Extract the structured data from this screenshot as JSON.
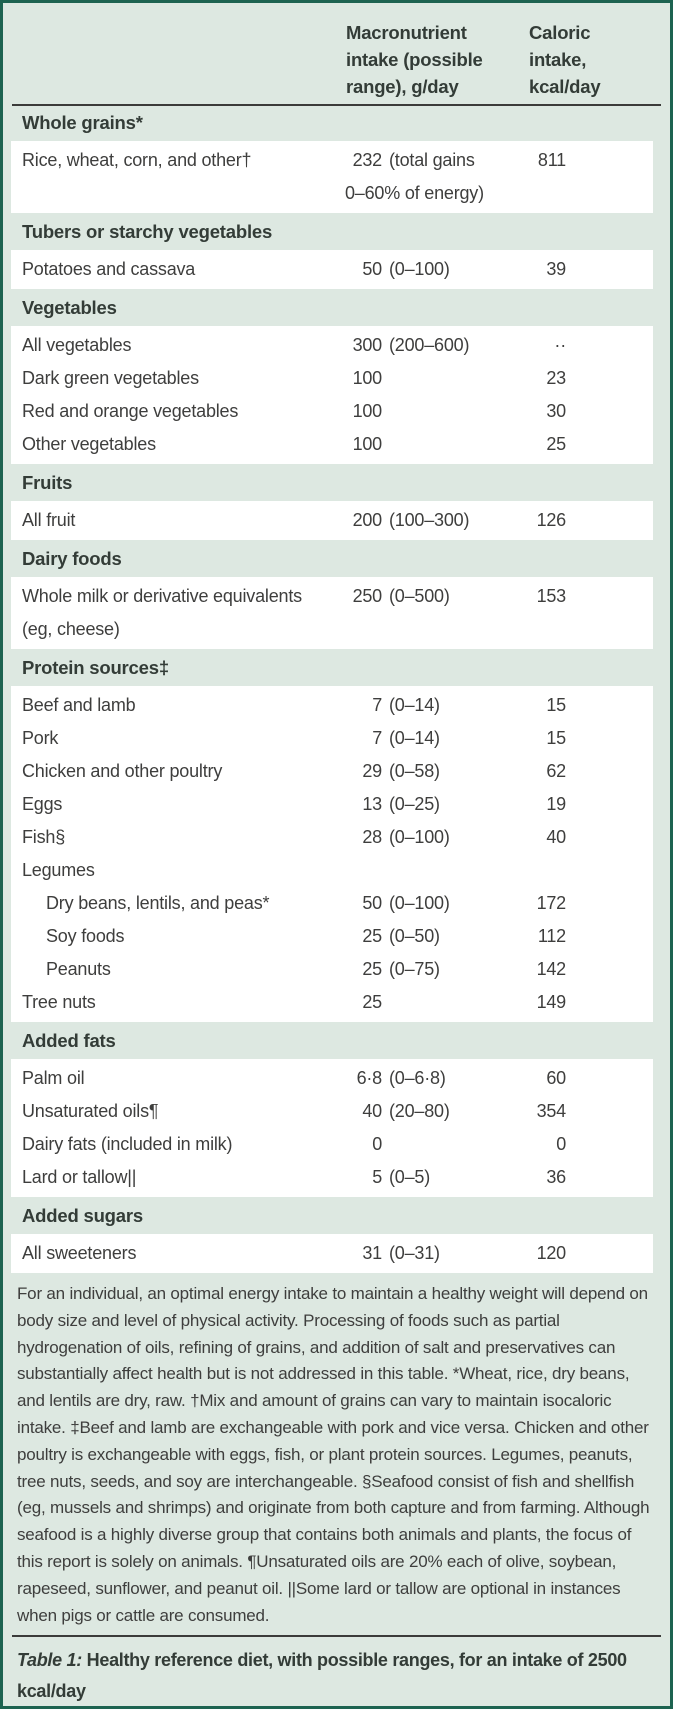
{
  "colors": {
    "table_background": "#dde8e1",
    "table_border": "#1d6350",
    "row_background": "#ffffff",
    "text": "#3e3e3d",
    "rule": "#3b3b3a"
  },
  "header": {
    "grams_col": "Macronutrient intake (possible range), g/day",
    "kcal_col": "Caloric intake, kcal/day"
  },
  "sections": [
    {
      "header": "Whole grains*",
      "rows": [
        {
          "name": "Rice, wheat, corn, and other†",
          "grams": "232",
          "range": "(total gains",
          "range2": "0–60% of energy)",
          "kcal": "811"
        }
      ]
    },
    {
      "header": "Tubers or starchy vegetables",
      "rows": [
        {
          "name": "Potatoes and cassava",
          "grams": "50",
          "range": "(0–100)",
          "kcal": "39"
        }
      ]
    },
    {
      "header": "Vegetables",
      "rows": [
        {
          "name": "All vegetables",
          "grams": "300",
          "range": "(200–600)",
          "kcal": "··"
        },
        {
          "name": "Dark green vegetables",
          "grams": "100",
          "range": "",
          "kcal": "23"
        },
        {
          "name": "Red and orange vegetables",
          "grams": "100",
          "range": "",
          "kcal": "30"
        },
        {
          "name": "Other vegetables",
          "grams": "100",
          "range": "",
          "kcal": "25"
        }
      ]
    },
    {
      "header": "Fruits",
      "rows": [
        {
          "name": "All fruit",
          "grams": "200",
          "range": "(100–300)",
          "kcal": "126"
        }
      ]
    },
    {
      "header": "Dairy foods",
      "rows": [
        {
          "name": "Whole milk or derivative equivalents",
          "name2": "(eg, cheese)",
          "grams": "250",
          "range": "(0–500)",
          "kcal": "153"
        }
      ]
    },
    {
      "header": "Protein sources‡",
      "rows": [
        {
          "name": "Beef and lamb",
          "grams": "7",
          "range": "(0–14)",
          "kcal": "15"
        },
        {
          "name": "Pork",
          "grams": "7",
          "range": "(0–14)",
          "kcal": "15"
        },
        {
          "name": "Chicken and other poultry",
          "grams": "29",
          "range": "(0–58)",
          "kcal": "62"
        },
        {
          "name": "Eggs",
          "grams": "13",
          "range": "(0–25)",
          "kcal": "19"
        },
        {
          "name": "Fish§",
          "grams": "28",
          "range": "(0–100)",
          "kcal": "40"
        },
        {
          "name": "Legumes",
          "subheader": true
        },
        {
          "name": "Dry beans, lentils, and peas*",
          "indent": true,
          "grams": "50",
          "range": "(0–100)",
          "kcal": "172"
        },
        {
          "name": "Soy foods",
          "indent": true,
          "grams": "25",
          "range": "(0–50)",
          "kcal": "112"
        },
        {
          "name": "Peanuts",
          "indent": true,
          "grams": "25",
          "range": "(0–75)",
          "kcal": "142"
        },
        {
          "name": "Tree nuts",
          "grams": "25",
          "range": "",
          "kcal": "149"
        }
      ]
    },
    {
      "header": "Added fats",
      "rows": [
        {
          "name": "Palm oil",
          "grams": "6·8",
          "range": "(0–6·8)",
          "kcal": "60"
        },
        {
          "name": "Unsaturated oils¶",
          "grams": "40",
          "range": "(20–80)",
          "kcal": "354"
        },
        {
          "name": "Dairy fats (included in milk)",
          "grams": "0",
          "range": "",
          "kcal": "0"
        },
        {
          "name": "Lard or tallow||",
          "grams": "5",
          "range": "(0–5)",
          "kcal": "36"
        }
      ]
    },
    {
      "header": "Added sugars",
      "rows": [
        {
          "name": "All sweeteners",
          "grams": "31",
          "range": "(0–31)",
          "kcal": "120"
        }
      ]
    }
  ],
  "footnote": "For an individual, an optimal energy intake to maintain a healthy weight will depend on body size and level of physical activity. Processing of foods such as partial hydrogenation of oils, refining of grains, and addition of salt and preservatives can substantially affect health but is not addressed in this table. *Wheat, rice, dry beans, and lentils are dry, raw. †Mix and amount of grains can vary to maintain isocaloric intake. ‡Beef and lamb are exchangeable with pork and vice versa. Chicken and other poultry is exchangeable with eggs, fish, or plant protein sources. Legumes, peanuts, tree nuts, seeds, and soy are interchangeable. §Seafood consist of fish and shellfish (eg, mussels and shrimps) and originate from both capture and from farming. Although seafood is a highly diverse group that contains both animals and plants, the focus of this report is solely on animals. ¶Unsaturated oils are 20% each of olive, soybean, rapeseed, sunflower, and peanut oil. ||Some lard or tallow are optional in instances when pigs or cattle are consumed.",
  "caption": {
    "label": "Table 1:",
    "text": "Healthy reference diet, with possible ranges, for an intake of 2500 kcal/day"
  }
}
